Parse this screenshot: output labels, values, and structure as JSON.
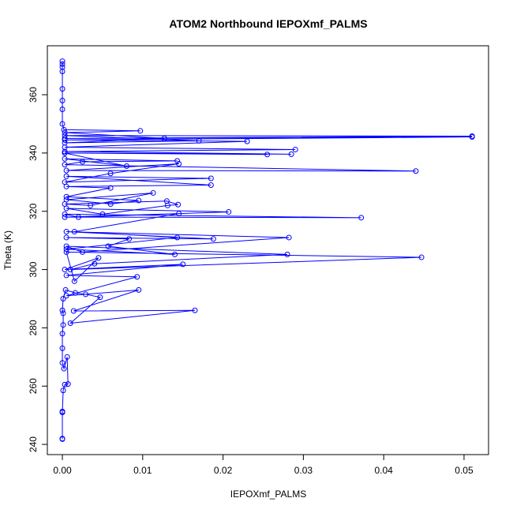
{
  "chart_data": {
    "type": "line",
    "title": "ATOM2 Northbound IEPOXmf_PALMS",
    "x_label": "IEPOXmf_PALMS",
    "y_label": "Theta (K)",
    "markers": true,
    "series": [
      {
        "name": "IEPOXmf_PALMS",
        "color": "#0000ff",
        "x": [
          0,
          0,
          0,
          0,
          0.0001,
          0.0003,
          0.0007,
          0.0006,
          0.0002,
          0,
          0,
          0,
          0.0001,
          0.0001,
          0,
          0.0001,
          0.0004,
          0.0016,
          0.0029,
          0.0047,
          0.001,
          0.0165,
          0.0014,
          0.0095,
          0.0005,
          0.0093,
          0.0005,
          0.015,
          0.0003,
          0.0045,
          0.0015,
          0.0005,
          0.0447,
          0.001,
          0.004,
          0.028,
          0.0005,
          0.0025,
          0.0282,
          0.0005,
          0.0188,
          0.0005,
          0.0083,
          0.0057,
          0.014,
          0.0005,
          0.0143,
          0.0015,
          0.0145,
          0.0003,
          0.0372,
          0.0003,
          0.002,
          0.0207,
          0.0005,
          0.005,
          0.0131,
          0.0144,
          0.013,
          0.0003,
          0.0035,
          0.0113,
          0.0005,
          0.006,
          0.0095,
          0.0005,
          0.006,
          0.0005,
          0.0185,
          0.0005,
          0.0185,
          0.0003,
          0.006,
          0.0145,
          0.0005,
          0.044,
          0.0003,
          0.0025,
          0.0143,
          0.0003,
          0.008,
          0.0003,
          0.0255,
          0.0003,
          0.0285,
          0.0003,
          0.029,
          0.0003,
          0.023,
          0.0003,
          0.051,
          0.0003,
          0.051,
          0.0003,
          0.017,
          0.0003,
          0.0127,
          0.0003,
          0.0097,
          0.0002,
          0,
          0,
          0,
          0,
          0,
          0,
          0,
          0
        ],
        "values": [
          241.8,
          242,
          251,
          251.3,
          258.5,
          260.5,
          260.7,
          270,
          266,
          268,
          273,
          278,
          281,
          285,
          286,
          290,
          293,
          292,
          291.5,
          290.5,
          281.6,
          286,
          285.8,
          293,
          291,
          297.5,
          298,
          301.8,
          300,
          304,
          296,
          306,
          304.2,
          300,
          302,
          305.2,
          308,
          306,
          311,
          313,
          310.5,
          311,
          310.5,
          308,
          305.2,
          307,
          311,
          313,
          319.2,
          318,
          317.8,
          319,
          318,
          319.8,
          321,
          319,
          322,
          322.3,
          323.5,
          322.5,
          322,
          326.3,
          324,
          322.5,
          323.7,
          325,
          328,
          328.5,
          329,
          332,
          331.3,
          330,
          333,
          336.3,
          334,
          333.8,
          336,
          337,
          337.3,
          338,
          335.5,
          340,
          339.5,
          340,
          339.6,
          340.5,
          341.2,
          342,
          344,
          344.5,
          345.5,
          345,
          345.8,
          346,
          344.2,
          343.5,
          345,
          347,
          347.6,
          348,
          350,
          355,
          358,
          362,
          368,
          369.5,
          370.5,
          371.5
        ]
      }
    ],
    "xlim": [
      -0.00187,
      0.05305
    ],
    "ylim": [
      236.5,
      376.8
    ],
    "xticks": [
      {
        "value": 0,
        "label": "0.00"
      },
      {
        "value": 0.01,
        "label": "0.01"
      },
      {
        "value": 0.02,
        "label": "0.02"
      },
      {
        "value": 0.03,
        "label": "0.03"
      },
      {
        "value": 0.04,
        "label": "0.04"
      },
      {
        "value": 0.05,
        "label": "0.05"
      }
    ],
    "yticks": [
      240,
      260,
      280,
      300,
      320,
      340,
      360
    ]
  }
}
